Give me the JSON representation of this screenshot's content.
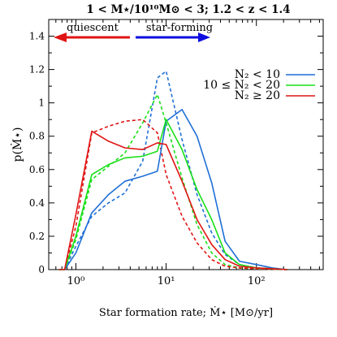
{
  "chart_data": {
    "type": "line",
    "title": "1 < M⋆/10¹⁰M⊙ < 3; 1.2 < z < 1.4",
    "xlabel": "Star formation rate; Ṁ⋆ [M⊙/yr]",
    "ylabel": "p(Ṁ⋆)",
    "xscale": "log",
    "xlim": [
      0.5,
      550
    ],
    "ylim": [
      0,
      1.5
    ],
    "x_ticks": [
      {
        "value": 1,
        "label": "10⁰"
      },
      {
        "value": 10,
        "label": "10¹"
      },
      {
        "value": 100,
        "label": "10²"
      }
    ],
    "y_ticks": [
      0,
      0.2,
      0.4,
      0.6,
      0.8,
      1,
      1.2,
      1.4
    ],
    "y_tick_labels": [
      "0",
      "0.2",
      "0.4",
      "0.6",
      "0.8",
      "1",
      "1.2",
      "1.4"
    ],
    "grid": false,
    "legend_position": "top-right",
    "annotations": {
      "quiescent": "quiescent",
      "star_forming": "star-forming"
    },
    "series": [
      {
        "name": "N₂ < 10",
        "color": "#1f6fd6",
        "style": "solid",
        "x": [
          0.65,
          0.75,
          1.0,
          1.5,
          2.3,
          3.5,
          5.5,
          8.0,
          10.0,
          15.0,
          22.0,
          32.0,
          45.0,
          65.0,
          100.0,
          150.0,
          220.0
        ],
        "y": [
          0,
          0,
          0.1,
          0.34,
          0.45,
          0.53,
          0.56,
          0.59,
          0.89,
          0.96,
          0.8,
          0.52,
          0.17,
          0.05,
          0.03,
          0.01,
          0
        ]
      },
      {
        "name": "10 ≤ N₂ < 20",
        "color": "#19e019",
        "style": "solid",
        "x": [
          0.65,
          0.75,
          1.0,
          1.5,
          2.3,
          3.5,
          5.5,
          8.0,
          10.0,
          15.0,
          22.0,
          32.0,
          45.0,
          65.0,
          100.0,
          150.0,
          220.0
        ],
        "y": [
          0,
          0,
          0.2,
          0.57,
          0.63,
          0.67,
          0.68,
          0.71,
          0.9,
          0.72,
          0.48,
          0.3,
          0.1,
          0.03,
          0.01,
          0.005,
          0
        ]
      },
      {
        "name": "N₂ ≥ 20",
        "color": "#e01414",
        "style": "solid",
        "x": [
          0.65,
          0.75,
          1.0,
          1.5,
          2.3,
          3.5,
          5.5,
          8.0,
          10.0,
          15.0,
          22.0,
          32.0,
          45.0,
          65.0,
          100.0,
          150.0,
          220.0
        ],
        "y": [
          0,
          0,
          0.33,
          0.83,
          0.77,
          0.73,
          0.72,
          0.76,
          0.75,
          0.53,
          0.3,
          0.15,
          0.06,
          0.02,
          0.01,
          0.005,
          0
        ]
      },
      {
        "color": "#1f6fd6",
        "style": "dashed",
        "x": [
          0.65,
          0.75,
          1.0,
          1.5,
          2.3,
          3.5,
          5.5,
          8.0,
          10.0,
          15.0,
          22.0,
          32.0,
          45.0,
          65.0,
          100.0,
          150.0,
          220.0
        ],
        "y": [
          0,
          0,
          0.14,
          0.32,
          0.4,
          0.46,
          0.65,
          1.15,
          1.19,
          0.78,
          0.45,
          0.22,
          0.09,
          0.03,
          0.01,
          0.005,
          0
        ]
      },
      {
        "color": "#19e019",
        "style": "dashed",
        "x": [
          0.65,
          0.75,
          1.0,
          1.5,
          2.3,
          3.5,
          5.5,
          8.0,
          10.0,
          15.0,
          22.0,
          32.0,
          45.0,
          65.0,
          100.0,
          150.0,
          220.0
        ],
        "y": [
          0,
          0,
          0.18,
          0.54,
          0.62,
          0.7,
          0.88,
          1.05,
          0.88,
          0.55,
          0.27,
          0.1,
          0.03,
          0.01,
          0.005,
          0.002,
          0
        ]
      },
      {
        "color": "#e01414",
        "style": "dashed",
        "x": [
          0.65,
          0.75,
          1.0,
          1.5,
          2.3,
          3.5,
          5.5,
          8.0,
          10.0,
          15.0,
          22.0,
          32.0,
          45.0,
          65.0,
          100.0,
          150.0,
          220.0
        ],
        "y": [
          0,
          0,
          0.26,
          0.82,
          0.86,
          0.89,
          0.9,
          0.82,
          0.57,
          0.32,
          0.16,
          0.06,
          0.02,
          0.01,
          0.005,
          0.002,
          0
        ]
      }
    ]
  }
}
